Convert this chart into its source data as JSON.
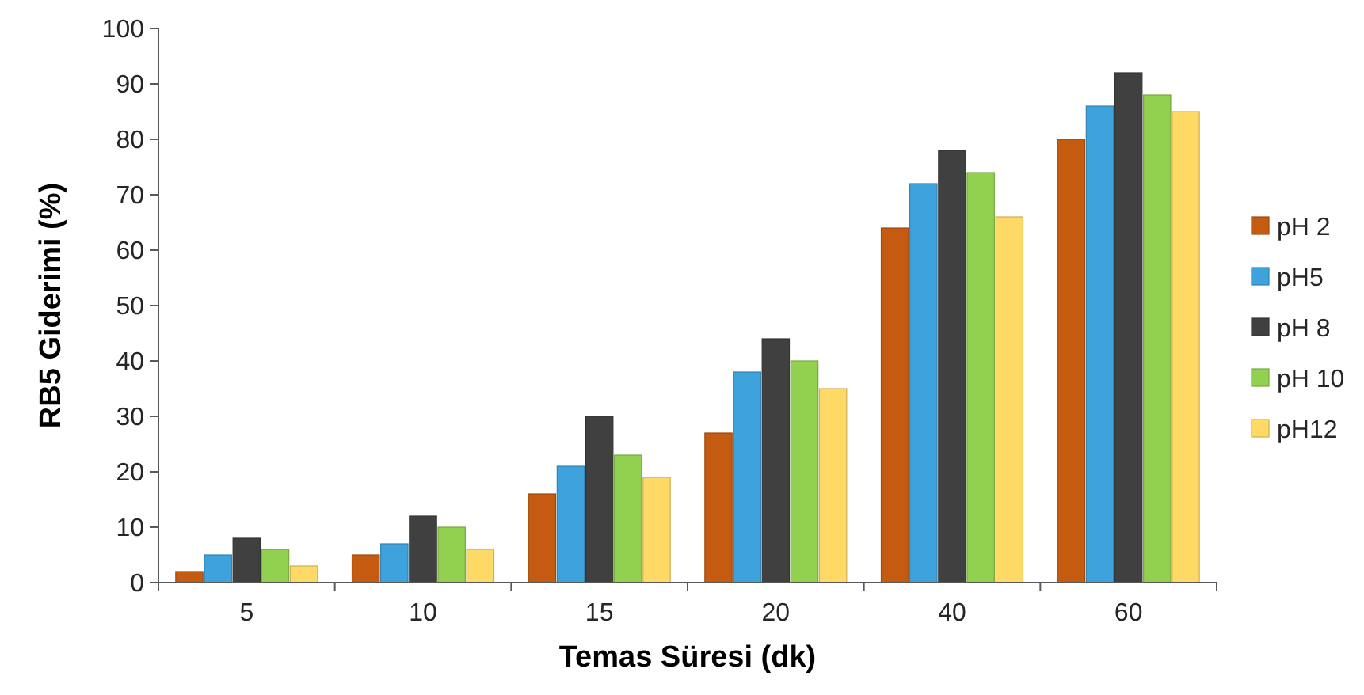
{
  "chart_data": {
    "type": "bar",
    "xlabel": "Temas Süresi (dk)",
    "ylabel": "RB5 Giderimi (%)",
    "categories": [
      "5",
      "10",
      "15",
      "20",
      "40",
      "60"
    ],
    "series": [
      {
        "name": "pH 2",
        "color": "#c55a11",
        "values": [
          2,
          5,
          16,
          27,
          64,
          80
        ]
      },
      {
        "name": "pH5",
        "color": "#3ea2dd",
        "values": [
          5,
          7,
          21,
          38,
          72,
          86
        ]
      },
      {
        "name": "pH 8",
        "color": "#404040",
        "values": [
          8,
          12,
          30,
          44,
          78,
          92
        ]
      },
      {
        "name": "pH 10",
        "color": "#92d050",
        "values": [
          6,
          10,
          23,
          40,
          74,
          88
        ]
      },
      {
        "name": "pH12",
        "color": "#ffd966",
        "values": [
          3,
          6,
          19,
          35,
          66,
          85
        ]
      }
    ],
    "ylim": [
      0,
      100
    ],
    "yticks": [
      0,
      10,
      20,
      30,
      40,
      50,
      60,
      70,
      80,
      90,
      100
    ],
    "grid": false,
    "legend": "right"
  }
}
